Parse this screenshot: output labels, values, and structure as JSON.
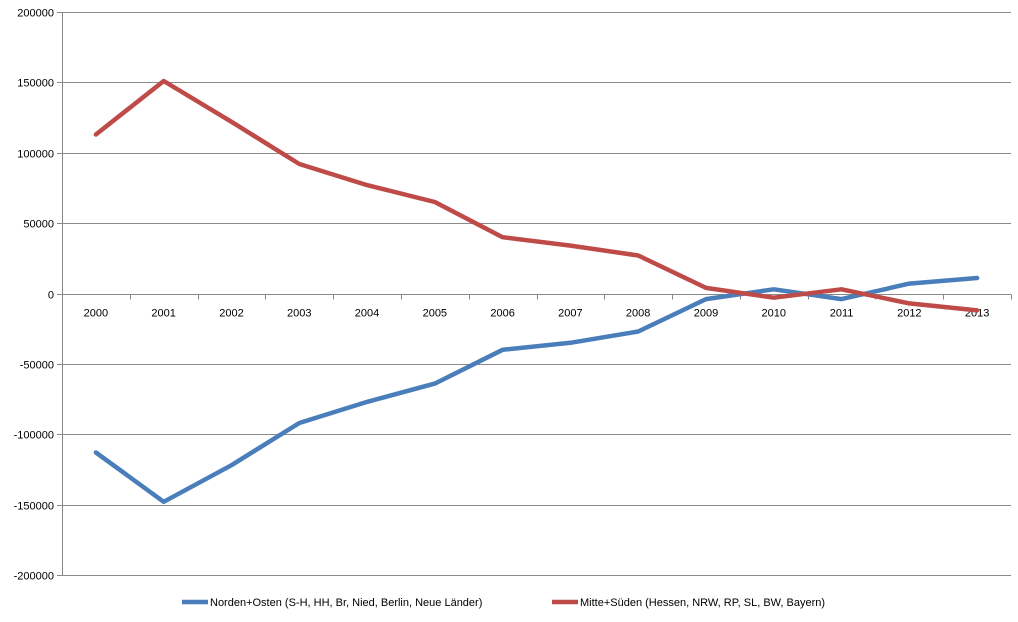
{
  "chart_data": {
    "type": "line",
    "title": "",
    "xlabel": "",
    "ylabel": "",
    "categories": [
      "2000",
      "2001",
      "2002",
      "2003",
      "2004",
      "2005",
      "2006",
      "2007",
      "2008",
      "2009",
      "2010",
      "2011",
      "2012",
      "2013"
    ],
    "ylim": [
      -200000,
      200000
    ],
    "yticks": [
      200000,
      150000,
      100000,
      50000,
      0,
      -50000,
      -100000,
      -150000,
      -200000
    ],
    "grid": true,
    "legend_position": "bottom",
    "series": [
      {
        "name": "Norden+Osten (S-H, HH, Br, Nied, Berlin, Neue Länder)",
        "color": "#4a7ebb",
        "values": [
          -113000,
          -148000,
          -122000,
          -92000,
          -77000,
          -64000,
          -40000,
          -35000,
          -27000,
          -4000,
          3000,
          -4000,
          7000,
          11000
        ]
      },
      {
        "name": "Mitte+Süden (Hessen, NRW, RP, SL, BW, Bayern)",
        "color": "#be4b48",
        "values": [
          113000,
          151000,
          122000,
          92000,
          77000,
          65000,
          40000,
          34000,
          27000,
          4000,
          -3000,
          3000,
          -7000,
          -12000
        ]
      }
    ]
  }
}
